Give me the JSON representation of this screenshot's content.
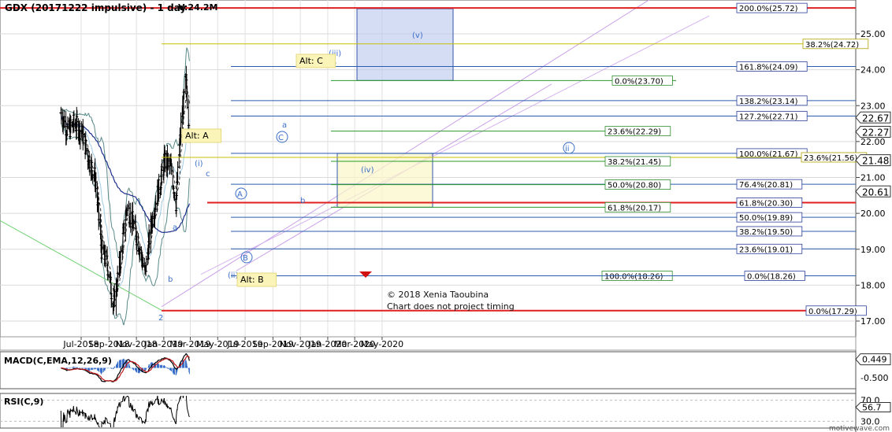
{
  "chart_data": [
    {
      "type": "candlestick",
      "title": "GDX (20171222 impulsive) - 1 day",
      "volume_label": "V:24.2M",
      "ylim": [
        16.8,
        26.1
      ],
      "y_ticks": [
        "17.00",
        "18.00",
        "19.00",
        "20.00",
        "21.00",
        "22.00",
        "23.00",
        "24.00",
        "25.00"
      ],
      "x_ticks": [
        "Jul-2018",
        "Sep-2018",
        "Nov-2018",
        "Jan-2019",
        "Mar-2019",
        "May-2019",
        "Jul-2019",
        "Sep-2019",
        "Nov-2019",
        "Jan-2020",
        "Mar-2020",
        "May-2020"
      ],
      "price_markers": [
        {
          "label": "22.67",
          "y": 22.67,
          "color": "#ffffff"
        },
        {
          "label": "22.27",
          "y": 22.27,
          "color": "#ffffff"
        },
        {
          "label": "21.48",
          "y": 21.48,
          "color": "#ffffff"
        },
        {
          "label": "20.61",
          "y": 20.61,
          "color": "#ffffff"
        }
      ],
      "close_series_approx": [
        {
          "date": "2018-05-17",
          "close": 22.8
        },
        {
          "date": "2018-06-01",
          "close": 22.3
        },
        {
          "date": "2018-06-15",
          "close": 22.5
        },
        {
          "date": "2018-07-02",
          "close": 22.3
        },
        {
          "date": "2018-07-16",
          "close": 21.6
        },
        {
          "date": "2018-08-01",
          "close": 21.0
        },
        {
          "date": "2018-08-15",
          "close": 19.0
        },
        {
          "date": "2018-08-28",
          "close": 18.6
        },
        {
          "date": "2018-09-11",
          "close": 17.4
        },
        {
          "date": "2018-09-25",
          "close": 18.6
        },
        {
          "date": "2018-10-11",
          "close": 20.2
        },
        {
          "date": "2018-10-25",
          "close": 19.7
        },
        {
          "date": "2018-11-09",
          "close": 19.0
        },
        {
          "date": "2018-11-20",
          "close": 18.3
        },
        {
          "date": "2018-12-05",
          "close": 19.8
        },
        {
          "date": "2018-12-19",
          "close": 20.6
        },
        {
          "date": "2019-01-04",
          "close": 21.5
        },
        {
          "date": "2019-01-18",
          "close": 21.2
        },
        {
          "date": "2019-01-28",
          "close": 20.3
        },
        {
          "date": "2019-02-08",
          "close": 22.4
        },
        {
          "date": "2019-02-19",
          "close": 23.7
        },
        {
          "date": "2019-02-27",
          "close": 22.3
        }
      ],
      "fib_levels": [
        {
          "label": "200.0%(25.72)",
          "y": 25.72
        },
        {
          "label": "38.2%(24.72)",
          "y": 24.72
        },
        {
          "label": "161.8%(24.09)",
          "y": 24.09
        },
        {
          "label": "0.0%(23.70)",
          "y": 23.7
        },
        {
          "label": "138.2%(23.14)",
          "y": 23.14
        },
        {
          "label": "127.2%(22.71)",
          "y": 22.71
        },
        {
          "label": "23.6%(22.29)",
          "y": 22.29
        },
        {
          "label": "100.0%(21.67)",
          "y": 21.67
        },
        {
          "label": "23.6%(21.56)",
          "y": 21.56
        },
        {
          "label": "38.2%(21.45)",
          "y": 21.45
        },
        {
          "label": "76.4%(20.81)",
          "y": 20.81
        },
        {
          "label": "50.0%(20.80)",
          "y": 20.8
        },
        {
          "label": "61.8%(20.30)",
          "y": 20.3
        },
        {
          "label": "61.8%(20.17)",
          "y": 20.17
        },
        {
          "label": "50.0%(19.89)",
          "y": 19.89
        },
        {
          "label": "38.2%(19.50)",
          "y": 19.5
        },
        {
          "label": "23.6%(19.01)",
          "y": 19.01
        },
        {
          "label": "100.0%(18.26)",
          "y": 18.26
        },
        {
          "label": "0.0%(18.26)",
          "y": 18.26
        },
        {
          "label": "0.0%(17.29)",
          "y": 17.29
        }
      ],
      "wave_labels": [
        "(v)",
        "(iii)",
        "c",
        "Alt: C",
        "a",
        "C",
        "Alt: A",
        "(i)",
        "c",
        "(iv)",
        "ii",
        "A",
        "a",
        "b",
        "b",
        "B",
        "(ii)",
        "Alt: B",
        "2"
      ],
      "annotations": [
        "© 2018 Xenia Taoubina",
        "Chart does not project timing"
      ]
    },
    {
      "type": "line",
      "title": "MACD(C,EMA,12,26,9)",
      "value_label": "0.449",
      "ticks": [
        "-0.500"
      ],
      "ylim": [
        -1.0,
        0.8
      ]
    },
    {
      "type": "line",
      "title": "RSI(C,9)",
      "value_label": "56.7",
      "ticks": [
        "70.0",
        "30.0"
      ],
      "ylim": [
        20,
        80
      ]
    }
  ],
  "watermark": "motivewave.com"
}
